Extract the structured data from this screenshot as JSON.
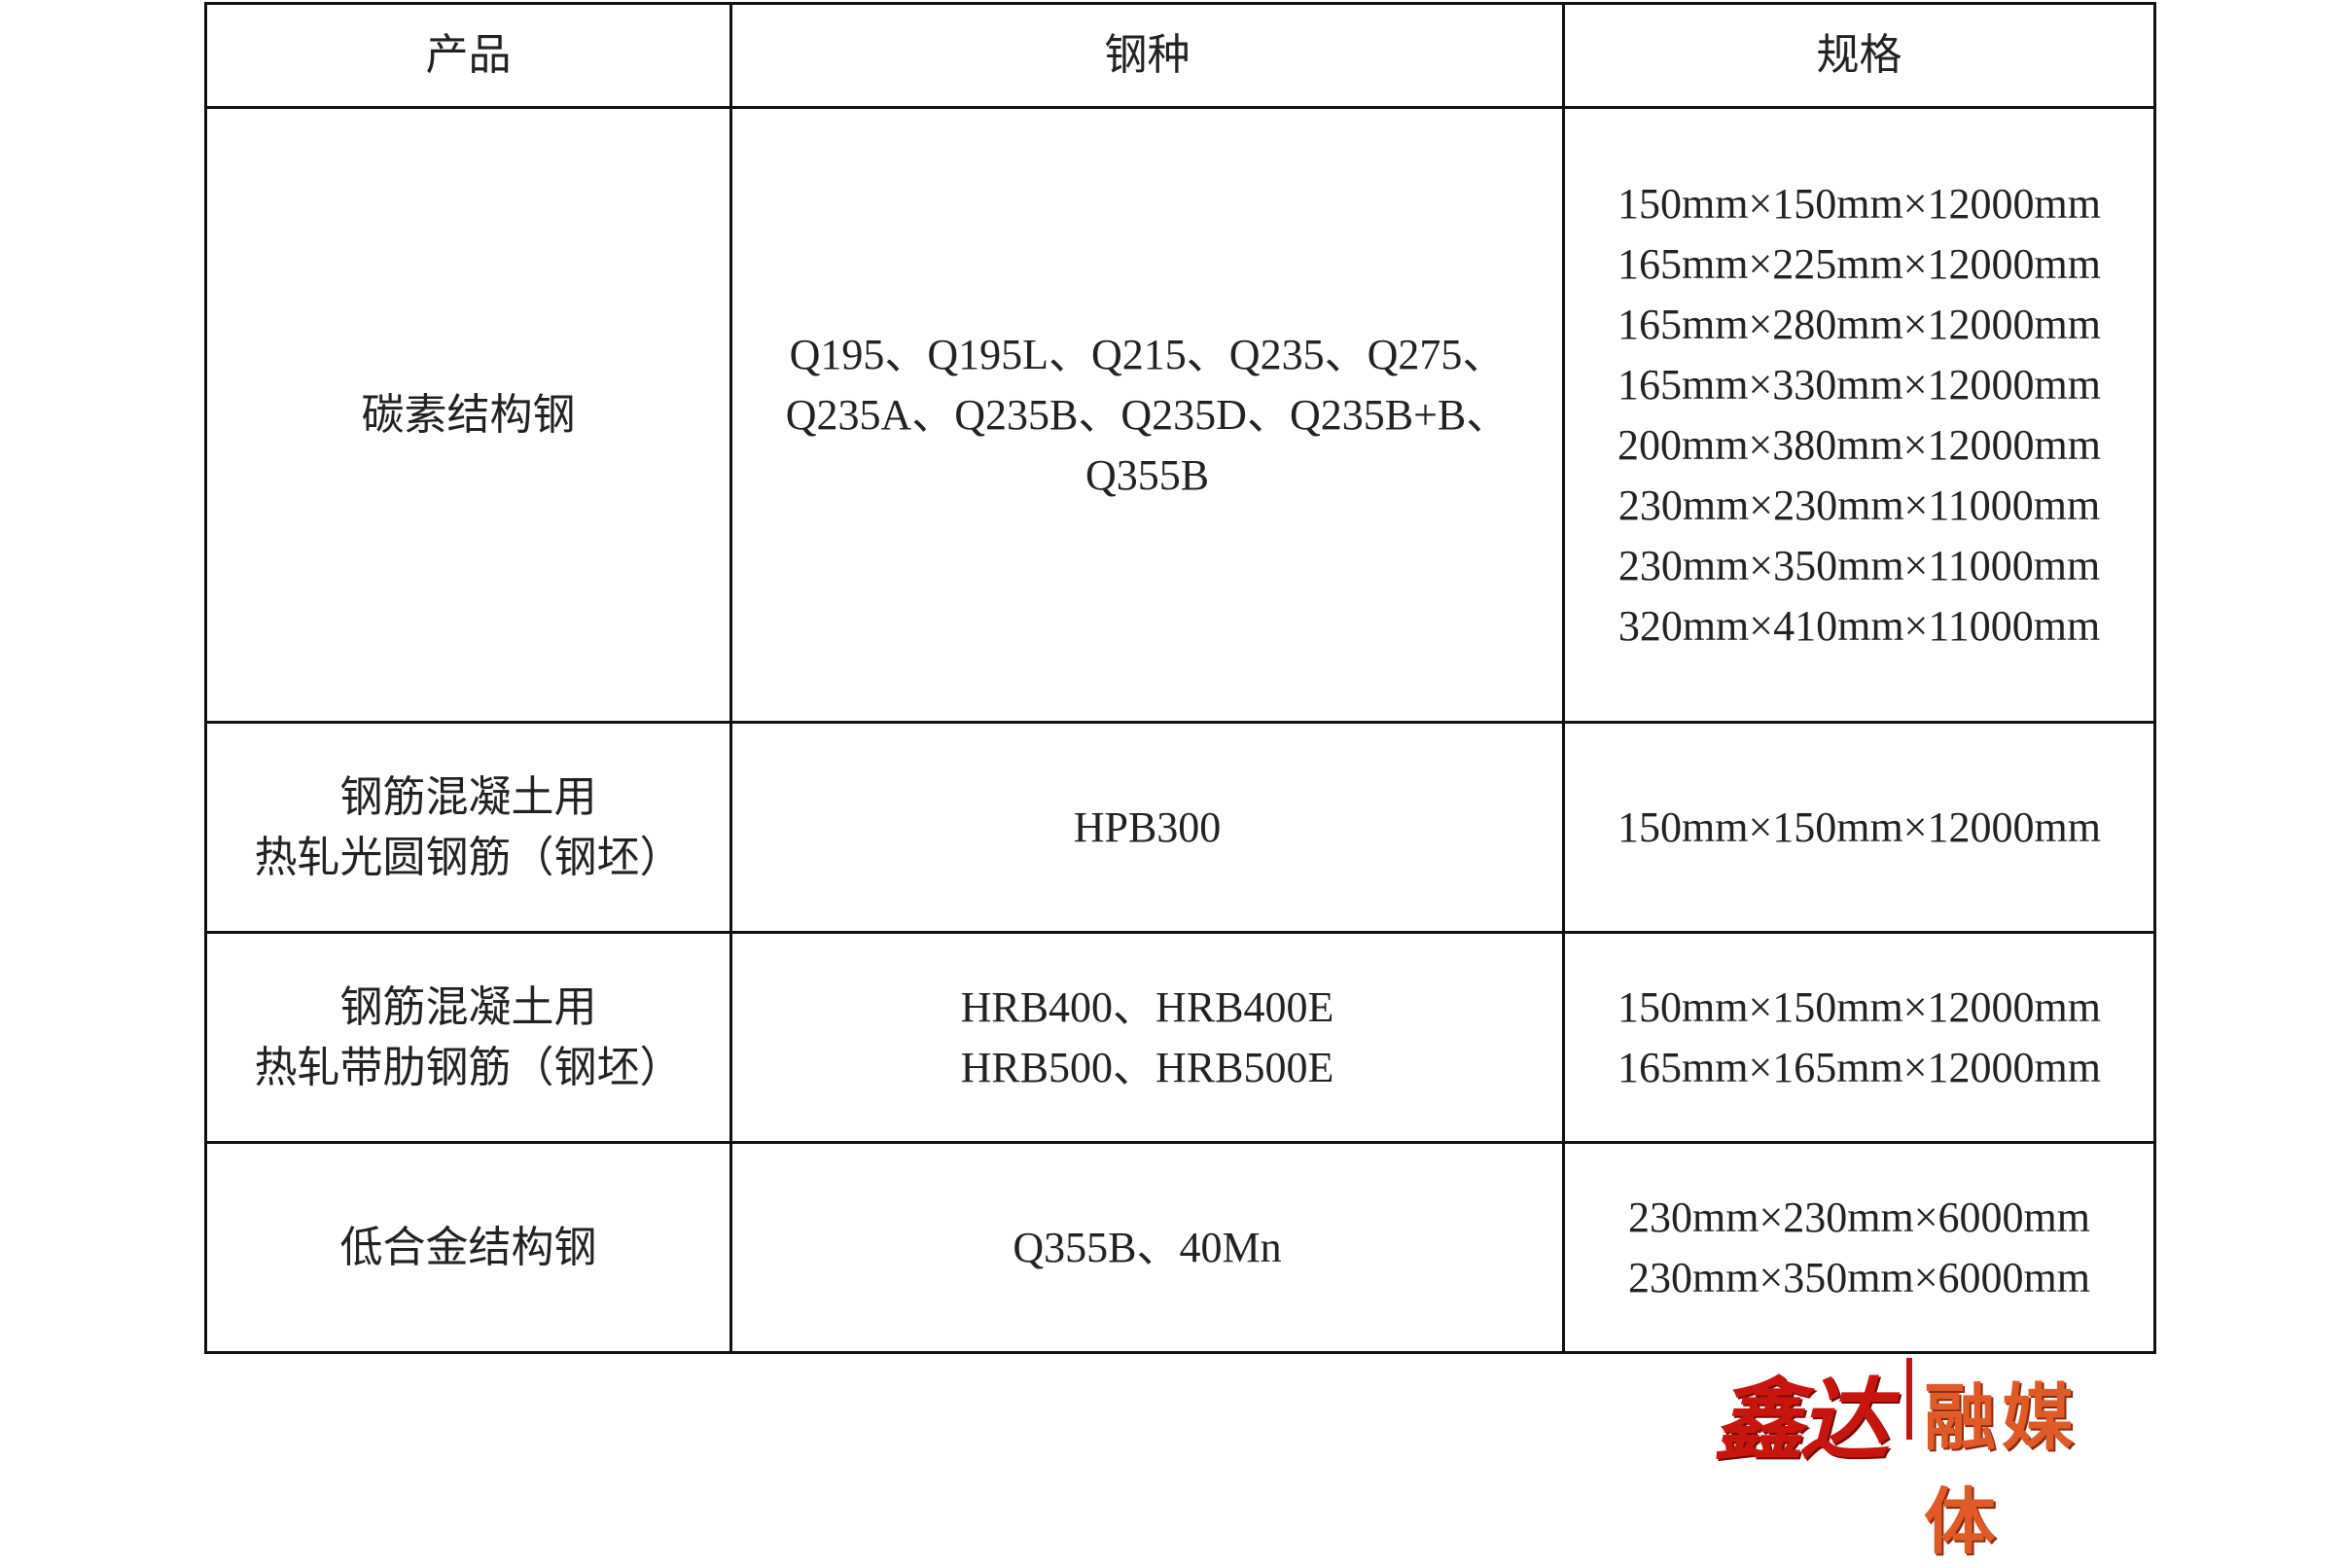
{
  "table": {
    "headers": [
      "产品",
      "钢种",
      "规格"
    ],
    "rows": [
      {
        "product": [
          "碳素结构钢"
        ],
        "grade": [
          "Q195、Q195L、Q215、Q235、Q275、",
          "Q235A、Q235B、Q235D、Q235B+B、",
          "Q355B"
        ],
        "spec": [
          "150mm×150mm×12000mm",
          "165mm×225mm×12000mm",
          "165mm×280mm×12000mm",
          "165mm×330mm×12000mm",
          "200mm×380mm×12000mm",
          "230mm×230mm×11000mm",
          "230mm×350mm×11000mm",
          "320mm×410mm×11000mm"
        ]
      },
      {
        "product": [
          "钢筋混凝土用",
          "热轧光圆钢筋（钢坯）"
        ],
        "grade": [
          "HPB300"
        ],
        "spec": [
          "150mm×150mm×12000mm"
        ]
      },
      {
        "product": [
          "钢筋混凝土用",
          "热轧带肋钢筋（钢坯）"
        ],
        "grade": [
          "HRB400、HRB400E",
          "HRB500、HRB500E"
        ],
        "spec": [
          "150mm×150mm×12000mm",
          "165mm×165mm×12000mm"
        ]
      },
      {
        "product": [
          "低合金结构钢"
        ],
        "grade": [
          "Q355B、40Mn"
        ],
        "spec": [
          "230mm×230mm×6000mm",
          "230mm×350mm×6000mm"
        ]
      }
    ]
  },
  "logo": {
    "part1": "鑫达",
    "part2": "融媒体",
    "color1": "#c8160f",
    "color2": "#e05a28"
  }
}
